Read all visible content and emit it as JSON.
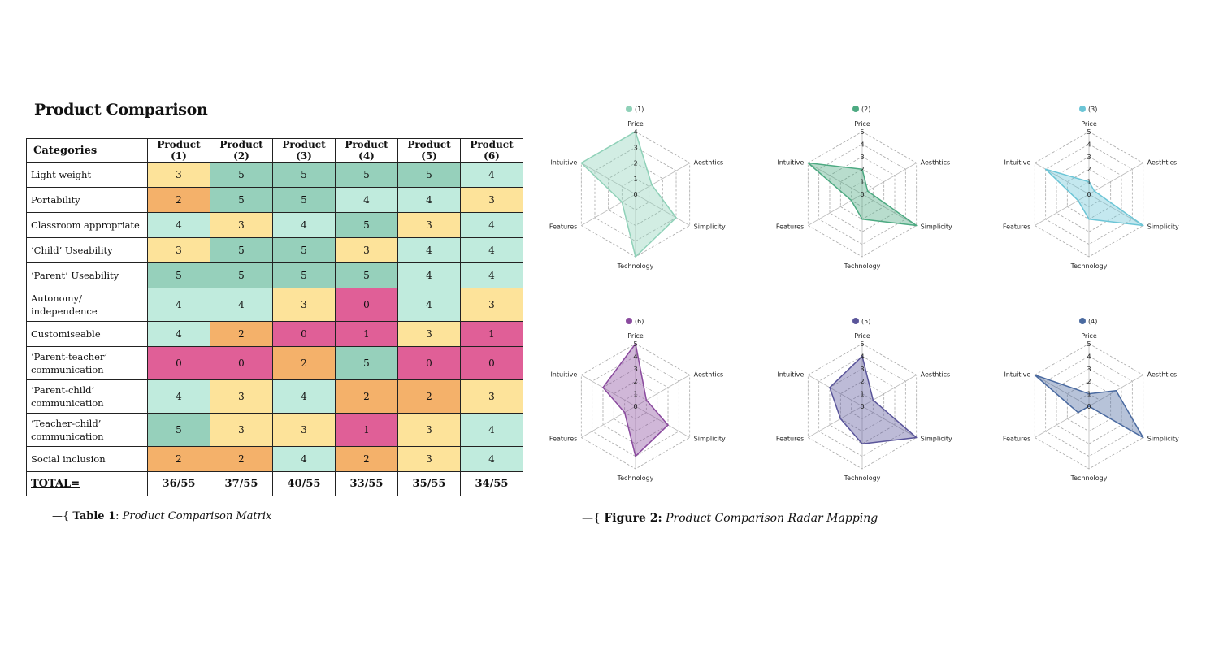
{
  "page": {
    "title": "Product Comparison"
  },
  "table": {
    "header_category": "Categories",
    "products": [
      "Product (1)",
      "Product (2)",
      "Product (3)",
      "Product (4)",
      "Product (5)",
      "Product (6)"
    ],
    "rows": [
      {
        "label": "Light weight",
        "values": [
          3,
          5,
          5,
          5,
          5,
          4
        ]
      },
      {
        "label": "Portability",
        "values": [
          2,
          5,
          5,
          4,
          4,
          3
        ]
      },
      {
        "label": "Classroom appropriate",
        "values": [
          4,
          3,
          4,
          5,
          3,
          4
        ]
      },
      {
        "label": "‘Child’ Useability",
        "values": [
          3,
          5,
          5,
          3,
          4,
          4
        ]
      },
      {
        "label": "‘Parent’ Useability",
        "values": [
          5,
          5,
          5,
          5,
          4,
          4
        ]
      },
      {
        "label": "Autonomy/ independence",
        "values": [
          4,
          4,
          3,
          0,
          4,
          3
        ]
      },
      {
        "label": "Customiseable",
        "values": [
          4,
          2,
          0,
          1,
          3,
          1
        ]
      },
      {
        "label": "‘Parent-teacher’ communication",
        "values": [
          0,
          0,
          2,
          5,
          0,
          0
        ]
      },
      {
        "label": "‘Parent-child’ communication",
        "values": [
          4,
          3,
          4,
          2,
          2,
          3
        ]
      },
      {
        "label": "‘Teacher-child’ communication",
        "values": [
          5,
          3,
          3,
          1,
          3,
          4
        ]
      },
      {
        "label": "Social inclusion",
        "values": [
          2,
          2,
          4,
          2,
          3,
          4
        ]
      }
    ],
    "total_label": "TOTAL=",
    "totals": [
      "36/55",
      "37/55",
      "40/55",
      "33/55",
      "35/55",
      "34/55"
    ],
    "cell_colors": {
      "0": "#e05f97",
      "1": "#e05f97",
      "2": "#f4b16a",
      "3": "#fde39a",
      "4": "#c0ebdd",
      "5": "#96d0bb"
    }
  },
  "captions": {
    "table_prefix": "—{ ",
    "table_bold": "Table 1",
    "table_sep": ": ",
    "table_italic": "Product Comparison Matrix",
    "figure_prefix": "—{ ",
    "figure_bold": "Figure 2:",
    "figure_italic": " Product Comparison Radar Mapping"
  },
  "chart_data": [
    {
      "type": "radar",
      "legend": "(1)",
      "color": "#8fd1b8",
      "axes": [
        "Price",
        "Aesthtics",
        "Simplicity",
        "Technology",
        "Features",
        "Intuitive"
      ],
      "ticks": [
        "0",
        "1",
        "2",
        "3",
        "4"
      ],
      "range": [
        0,
        4
      ],
      "values": [
        4,
        1.2,
        3,
        4,
        1,
        4
      ]
    },
    {
      "type": "radar",
      "legend": "(2)",
      "color": "#4daa82",
      "axes": [
        "Price",
        "Aesthtics",
        "Simplicity",
        "Technology",
        "Features",
        "Intuitive"
      ],
      "ticks": [
        "0",
        "1",
        "2",
        "3",
        "4",
        "5"
      ],
      "range": [
        0,
        5
      ],
      "values": [
        2,
        0.5,
        5,
        2,
        1,
        5
      ]
    },
    {
      "type": "radar",
      "legend": "(3)",
      "color": "#6cc5d6",
      "axes": [
        "Price",
        "Aesthtics",
        "Simplicity",
        "Technology",
        "Features",
        "Intuitive"
      ],
      "ticks": [
        "0",
        "1",
        "2",
        "3",
        "4",
        "5"
      ],
      "range": [
        0,
        5
      ],
      "values": [
        1,
        0.5,
        5,
        2,
        1,
        4
      ]
    },
    {
      "type": "radar",
      "legend": "(6)",
      "color": "#8a4a9e",
      "axes": [
        "Price",
        "Aesthtics",
        "Simplicity",
        "Technology",
        "Features",
        "Intuitive"
      ],
      "ticks": [
        "0",
        "1",
        "2",
        "3",
        "4",
        "5"
      ],
      "range": [
        0,
        5
      ],
      "values": [
        5,
        1,
        3,
        4,
        1,
        3
      ]
    },
    {
      "type": "radar",
      "legend": "(5)",
      "color": "#5a559a",
      "axes": [
        "Price",
        "Aesthtics",
        "Simplicity",
        "Technology",
        "Features",
        "Intuitive"
      ],
      "ticks": [
        "0",
        "1",
        "2",
        "3",
        "4",
        "5"
      ],
      "range": [
        0,
        5
      ],
      "values": [
        4,
        1,
        5,
        3,
        2,
        3
      ]
    },
    {
      "type": "radar",
      "legend": "(4)",
      "color": "#4a6aa0",
      "axes": [
        "Price",
        "Aesthtics",
        "Simplicity",
        "Technology",
        "Features",
        "Intuitive"
      ],
      "ticks": [
        "0",
        "1",
        "2",
        "3",
        "4",
        "5"
      ],
      "range": [
        0,
        5
      ],
      "values": [
        1,
        2.5,
        5,
        0,
        1,
        5
      ]
    }
  ]
}
